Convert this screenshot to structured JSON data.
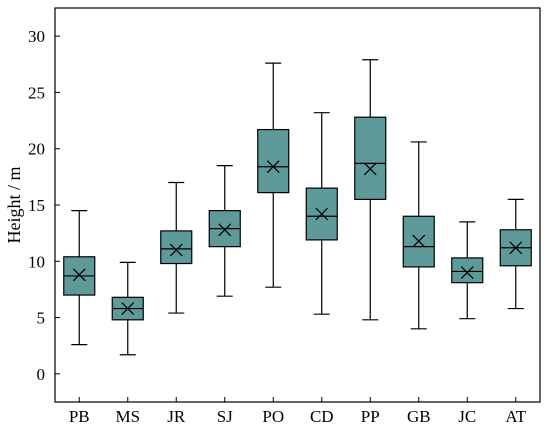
{
  "chart_data": {
    "type": "box",
    "title": "",
    "xlabel": "",
    "ylabel": "Height / m",
    "ylim": [
      -2.5,
      32.5
    ],
    "yticks": [
      0,
      5,
      10,
      15,
      20,
      25,
      30
    ],
    "grid": false,
    "legend": "none",
    "box_color": "#5F9A9A",
    "categories": [
      "PB",
      "MS",
      "JR",
      "SJ",
      "PO",
      "CD",
      "PP",
      "GB",
      "JC",
      "AT"
    ],
    "boxes": [
      {
        "category": "PB",
        "min": 2.6,
        "q1": 7.0,
        "median": 8.7,
        "q3": 10.4,
        "max": 14.5,
        "mean": 8.8
      },
      {
        "category": "MS",
        "min": 1.7,
        "q1": 4.8,
        "median": 5.8,
        "q3": 6.8,
        "max": 9.9,
        "mean": 5.8
      },
      {
        "category": "JR",
        "min": 5.4,
        "q1": 9.8,
        "median": 11.1,
        "q3": 12.7,
        "max": 17.0,
        "mean": 11.0
      },
      {
        "category": "SJ",
        "min": 6.9,
        "q1": 11.3,
        "median": 12.9,
        "q3": 14.5,
        "max": 18.5,
        "mean": 12.8
      },
      {
        "category": "PO",
        "min": 7.7,
        "q1": 16.1,
        "median": 18.4,
        "q3": 21.7,
        "max": 27.6,
        "mean": 18.4
      },
      {
        "category": "CD",
        "min": 5.3,
        "q1": 11.9,
        "median": 14.0,
        "q3": 16.5,
        "max": 23.2,
        "mean": 14.2
      },
      {
        "category": "PP",
        "min": 4.8,
        "q1": 15.5,
        "median": 18.7,
        "q3": 22.8,
        "max": 27.9,
        "mean": 18.2
      },
      {
        "category": "GB",
        "min": 4.0,
        "q1": 9.5,
        "median": 11.3,
        "q3": 14.0,
        "max": 20.6,
        "mean": 11.8
      },
      {
        "category": "JC",
        "min": 4.9,
        "q1": 8.1,
        "median": 9.1,
        "q3": 10.3,
        "max": 13.5,
        "mean": 9.0
      },
      {
        "category": "AT",
        "min": 5.8,
        "q1": 9.6,
        "median": 11.2,
        "q3": 12.8,
        "max": 15.5,
        "mean": 11.2
      }
    ]
  }
}
